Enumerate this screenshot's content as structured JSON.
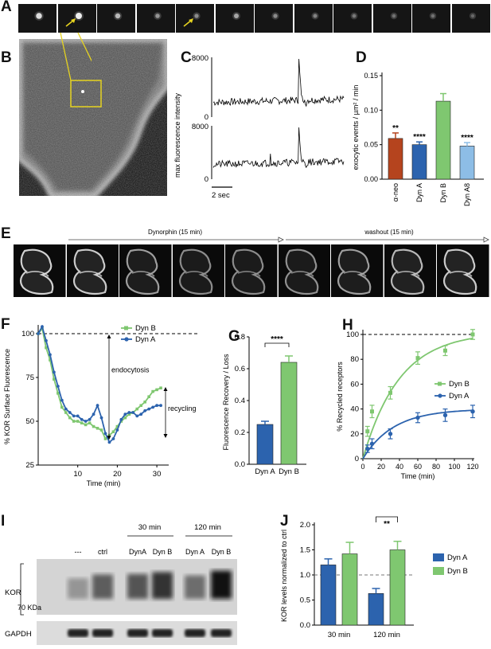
{
  "panels": {
    "A": "A",
    "B": "B",
    "C": "C",
    "D": "D",
    "E": "E",
    "F": "F",
    "G": "G",
    "H": "H",
    "I": "I",
    "J": "J"
  },
  "colors": {
    "dyn_a": "#2c63ae",
    "dyn_b": "#7fc770",
    "alpha_neo": "#b5441e",
    "dyn_a8": "#8dbde6"
  },
  "panel_c": {
    "ylabel": "max fluorescence intensity",
    "top_ticks": [
      "8000",
      "0"
    ],
    "bottom_ticks": [
      "8000",
      "0"
    ],
    "scalebar": "2 sec"
  },
  "panel_e": {
    "dyn_label": "Dynorphin (15 min)",
    "wash_label": "washout (15 min)"
  },
  "panel_f": {
    "ylabel": "% KOR Surface Fluorescence",
    "xlabel": "Time (min)",
    "endocytosis": "endocytosis",
    "recycling": "recycling"
  },
  "panel_i": {
    "lane_labels": [
      "---",
      "ctrl",
      "DynA",
      "Dyn B",
      "Dyn A",
      "Dyn B"
    ],
    "group_30": "30 min",
    "group_120": "120 min",
    "kor": "KOR",
    "kda": "70 KDa",
    "gapdh": "GAPDH"
  },
  "chart_data": [
    {
      "id": "D",
      "type": "bar",
      "ylabel": "exocytic events / µm² / min",
      "categories": [
        "α-neo",
        "Dyn A",
        "Dyn B",
        "Dyn A8"
      ],
      "values": [
        0.059,
        0.05,
        0.113,
        0.048
      ],
      "errors": [
        0.008,
        0.004,
        0.011,
        0.005
      ],
      "significance": [
        "**",
        "****",
        "",
        "****"
      ],
      "ylim": [
        0,
        0.15
      ],
      "yticks": [
        "0.00",
        "0.05",
        "0.10",
        "0.15"
      ]
    },
    {
      "id": "F",
      "type": "line",
      "ylabel": "% KOR Surface Fluorescence",
      "xlabel": "Time (min)",
      "xlim": [
        0,
        33
      ],
      "ylim": [
        25,
        105
      ],
      "xticks": [
        "10",
        "20",
        "30"
      ],
      "yticks": [
        "25",
        "50",
        "75",
        "100"
      ],
      "series": [
        {
          "name": "Dyn B",
          "x": [
            0,
            1,
            2,
            3,
            4,
            5,
            6,
            7,
            8,
            9,
            10,
            11,
            12,
            13,
            14,
            15,
            16,
            17,
            18,
            19,
            20,
            21,
            22,
            23,
            24,
            25,
            26,
            27,
            28,
            29,
            30,
            31
          ],
          "y": [
            100,
            103,
            92,
            85,
            74,
            66,
            58,
            55,
            52,
            50,
            50,
            49,
            48,
            49,
            47,
            46,
            45,
            40,
            42,
            44,
            47,
            50,
            52,
            54,
            55,
            57,
            59,
            61,
            64,
            67,
            68,
            69
          ]
        },
        {
          "name": "Dyn A",
          "x": [
            0,
            1,
            2,
            3,
            4,
            5,
            6,
            7,
            8,
            9,
            10,
            11,
            12,
            13,
            14,
            15,
            16,
            17,
            18,
            19,
            20,
            21,
            22,
            23,
            24,
            25,
            26,
            27,
            28,
            29,
            30,
            31
          ],
          "y": [
            100,
            104,
            96,
            88,
            78,
            70,
            62,
            57,
            55,
            53,
            53,
            51,
            50,
            51,
            54,
            59,
            52,
            43,
            38,
            40,
            45,
            51,
            54,
            55,
            55,
            53,
            54,
            56,
            57,
            58,
            59,
            59
          ]
        }
      ],
      "reference": 100
    },
    {
      "id": "G",
      "type": "bar",
      "ylabel": "Fluorescence Recovery / Loss",
      "categories": [
        "Dyn A",
        "Dyn B"
      ],
      "values": [
        0.25,
        0.64
      ],
      "errors": [
        0.02,
        0.04
      ],
      "ylim": [
        0,
        0.8
      ],
      "yticks": [
        "0.0",
        "0.2",
        "0.4",
        "0.6",
        "0.8"
      ],
      "significance": "****"
    },
    {
      "id": "H",
      "type": "scatter",
      "ylabel": "% Recycled receptors",
      "xlabel": "Time (min)",
      "xlim": [
        0,
        120
      ],
      "ylim": [
        0,
        100
      ],
      "xticks": [
        "0",
        "20",
        "40",
        "60",
        "80",
        "100",
        "120"
      ],
      "yticks": [
        "0",
        "20",
        "40",
        "60",
        "80",
        "100"
      ],
      "series": [
        {
          "name": "Dyn B",
          "x": [
            5,
            10,
            30,
            60,
            90,
            120
          ],
          "y": [
            22,
            38,
            53,
            81,
            87,
            100
          ],
          "err": [
            4,
            5,
            5,
            5,
            4,
            4
          ]
        },
        {
          "name": "Dyn A",
          "x": [
            5,
            10,
            30,
            60,
            90,
            120
          ],
          "y": [
            8,
            12,
            20,
            33,
            35,
            38
          ],
          "err": [
            3,
            4,
            4,
            4,
            5,
            5
          ]
        }
      ],
      "reference": 100
    },
    {
      "id": "J",
      "type": "bar",
      "ylabel": "KOR levels normalized to ctrl",
      "categories": [
        "30 min",
        "120 min"
      ],
      "series": [
        {
          "name": "Dyn A",
          "values": [
            1.2,
            0.63
          ],
          "errors": [
            0.12,
            0.1
          ]
        },
        {
          "name": "Dyn B",
          "values": [
            1.42,
            1.5
          ],
          "errors": [
            0.23,
            0.17
          ]
        }
      ],
      "ylim": [
        0,
        2.0
      ],
      "yticks": [
        "0.0",
        "0.5",
        "1.0",
        "1.5",
        "2.0"
      ],
      "reference": 1.0,
      "significance": "**"
    }
  ]
}
